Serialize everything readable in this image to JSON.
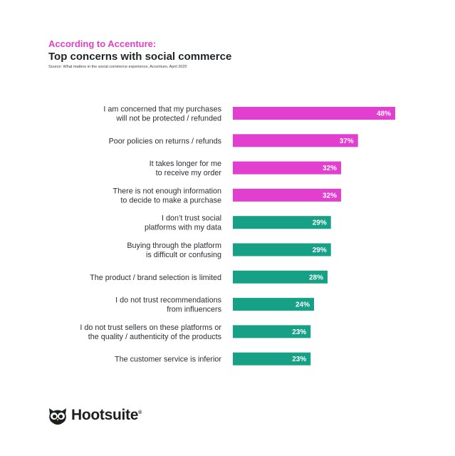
{
  "header": {
    "kicker": "According to Accenture:",
    "title": "Top concerns with social commerce",
    "source": "Source: What matters in the social commerce experience, Accenture, April 2020"
  },
  "brand": {
    "name": "Hootsuite",
    "reg_mark": "®",
    "icon": "owl-logo-icon"
  },
  "colors": {
    "kicker": "#e040c8",
    "highlight_bar": "#e23fd0",
    "standard_bar": "#16a085"
  },
  "chart_data": {
    "type": "bar",
    "orientation": "horizontal",
    "title": "Top concerns with social commerce",
    "xlim": [
      0,
      50
    ],
    "grid": false,
    "legend": "none",
    "categories": [
      [
        "I am concerned that my purchases",
        "will not be protected / refunded"
      ],
      [
        "Poor policies on returns / refunds"
      ],
      [
        "It takes longer for me",
        "to receive my order"
      ],
      [
        "There is not enough information",
        "to decide to make a purchase"
      ],
      [
        "I don’t trust social",
        "platforms with my data"
      ],
      [
        "Buying through the platform",
        "is difficult or confusing"
      ],
      [
        "The product / brand selection is limited"
      ],
      [
        "I do not trust recommendations",
        "from influencers"
      ],
      [
        "I do not trust sellers on these platforms or",
        "the quality / authenticity of the products"
      ],
      [
        "The customer service is inferior"
      ]
    ],
    "values": [
      48,
      37,
      32,
      32,
      29,
      29,
      28,
      24,
      23,
      23
    ],
    "value_labels": [
      "48%",
      "37%",
      "32%",
      "32%",
      "29%",
      "29%",
      "28%",
      "24%",
      "23%",
      "23%"
    ],
    "highlighted": [
      true,
      true,
      true,
      true,
      false,
      false,
      false,
      false,
      false,
      false
    ]
  }
}
